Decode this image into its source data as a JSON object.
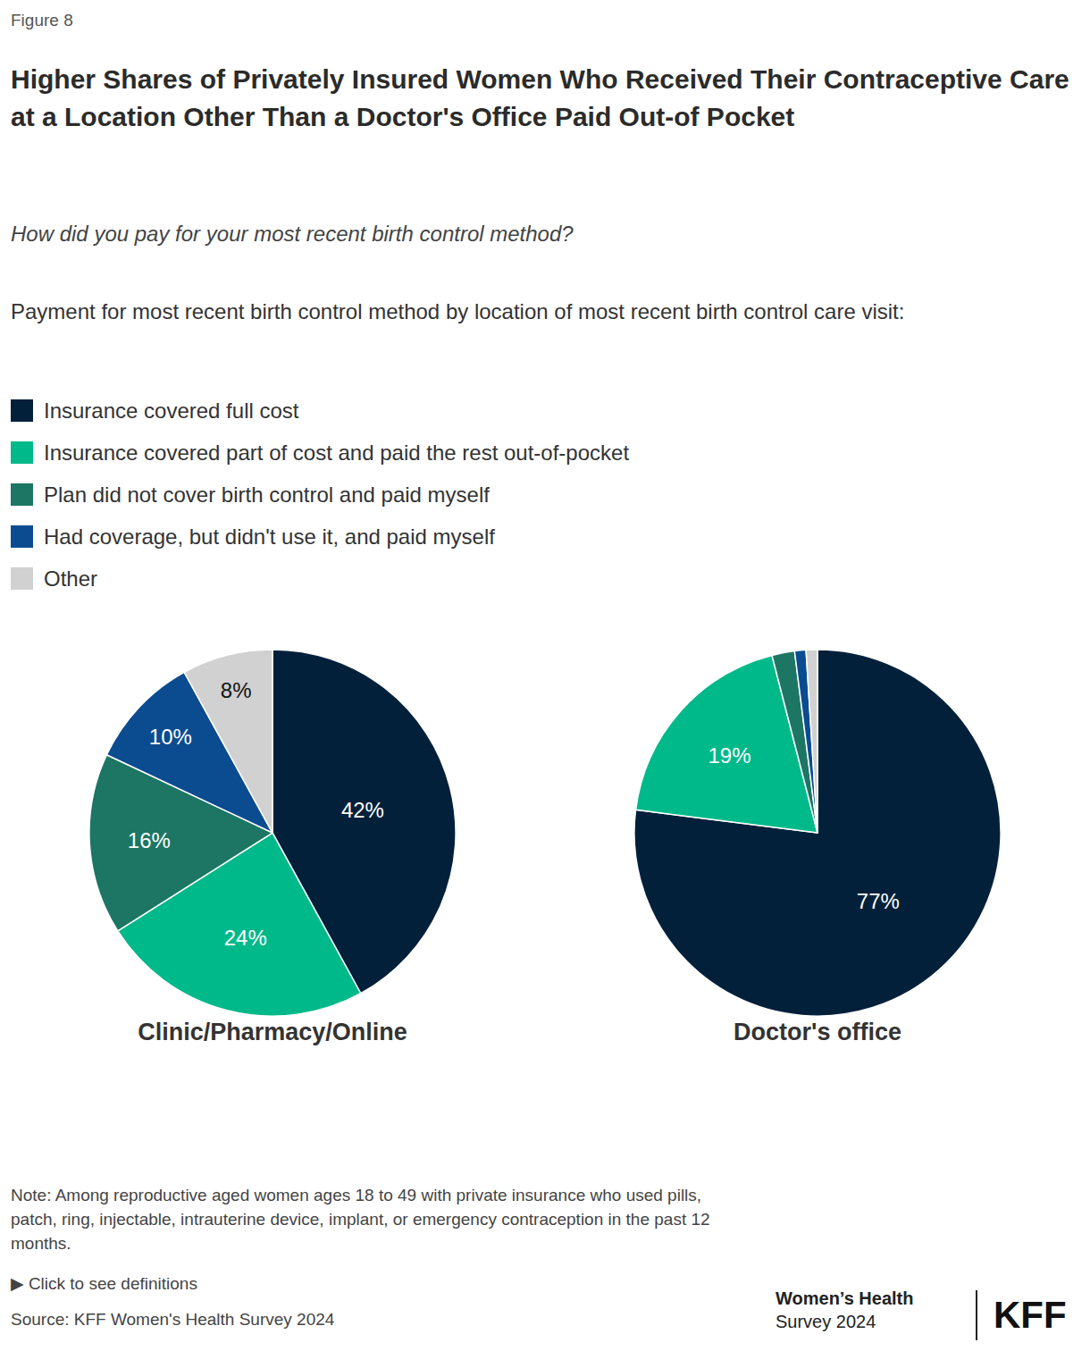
{
  "figure_label": "Figure 8",
  "title": "Higher Shares of Privately Insured Women Who Received Their Contraceptive Care at a Location Other Than a Doctor's Office Paid Out-of Pocket",
  "subtitle": "How did you pay for your most recent birth control method?",
  "description": "Payment for most recent birth control method by location of most recent birth control care visit:",
  "note": "Note: Among reproductive aged women ages 18 to 49 with private insurance who used pills, patch, ring, injectable, intrauterine device, implant, or emergency contraception in the past 12 months.",
  "definitions_link": "▶ Click to see definitions",
  "source": "Source: KFF Women's Health Survey 2024",
  "branding": {
    "line1": "Women’s Health",
    "line2": "Survey 2024",
    "logo": "KFF"
  },
  "chart_data": [
    {
      "type": "pie",
      "title": "Clinic/Pharmacy/Online",
      "categories": [
        "Insurance covered full cost",
        "Insurance covered part of cost and paid the rest out-of-pocket",
        "Plan did not cover birth control and paid myself",
        "Had coverage, but didn't use it, and paid myself",
        "Other"
      ],
      "values": [
        42,
        24,
        16,
        10,
        8
      ],
      "value_labels": [
        "42%",
        "24%",
        "16%",
        "10%",
        "8%"
      ],
      "colors": [
        "#03203a",
        "#00b98a",
        "#1c7663",
        "#0b4c90",
        "#d1d1d1"
      ],
      "data_labels": true
    },
    {
      "type": "pie",
      "title": "Doctor's office",
      "categories": [
        "Insurance covered full cost",
        "Insurance covered part of cost and paid the rest out-of-pocket",
        "Plan did not cover birth control and paid myself",
        "Had coverage, but didn't use it, and paid myself",
        "Other"
      ],
      "values": [
        77,
        19,
        2,
        1,
        1
      ],
      "value_labels": [
        "77%",
        "19%",
        null,
        null,
        null
      ],
      "colors": [
        "#03203a",
        "#00b98a",
        "#1c7663",
        "#0b4c90",
        "#d1d1d1"
      ],
      "data_labels": true
    }
  ]
}
